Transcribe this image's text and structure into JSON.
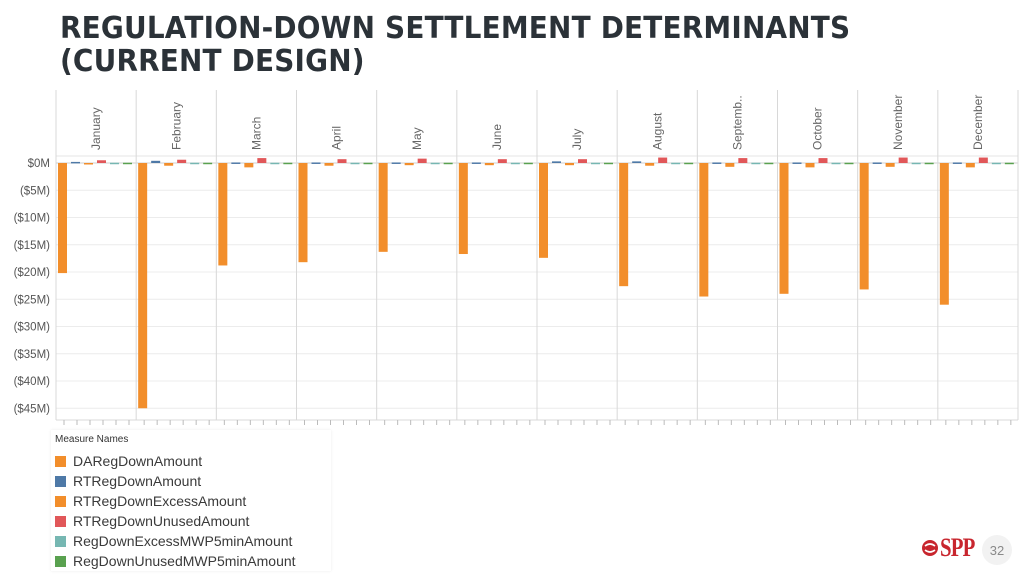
{
  "slide": {
    "title_line1": "REGULATION-DOWN SETTLEMENT DETERMINANTS",
    "title_line2": "(CURRENT DESIGN)",
    "page_number": "32",
    "logo_text": "SPP"
  },
  "legend": {
    "title": "Measure Names"
  },
  "colors": {
    "DA": "#f28e2b",
    "RT": "#4e79a7",
    "RTExcess": "#f28e2b",
    "RTUnused": "#e15759",
    "ExcessMWP": "#76b7b2",
    "UnusedMWP": "#59a14f",
    "brand": "#c8262e"
  },
  "chart_data": {
    "type": "bar",
    "categories": [
      "January",
      "February",
      "March",
      "April",
      "May",
      "June",
      "July",
      "August",
      "Septemb..",
      "October",
      "November",
      "December"
    ],
    "ylim": [
      -47,
      2
    ],
    "yticks": [
      0,
      -5,
      -10,
      -15,
      -20,
      -25,
      -30,
      -35,
      -40,
      -45
    ],
    "ytick_labels": [
      "$0M",
      "($5M)",
      "($10M)",
      "($15M)",
      "($20M)",
      "($25M)",
      "($30M)",
      "($35M)",
      "($40M)",
      "($45M)"
    ],
    "grid": true,
    "legend_position": "bottom-left",
    "series": [
      {
        "name": "DARegDownAmount",
        "color": "#f28e2b",
        "values": [
          -20.2,
          -45.0,
          -18.8,
          -18.2,
          -16.3,
          -16.7,
          -17.4,
          -22.6,
          -24.5,
          -24.0,
          -23.2,
          -26.0
        ]
      },
      {
        "name": "RTRegDownAmount",
        "color": "#4e79a7",
        "values": [
          0.2,
          0.4,
          0.1,
          0.1,
          0.1,
          0.1,
          0.3,
          0.3,
          0.1,
          0.1,
          0.1,
          0.1
        ]
      },
      {
        "name": "RTRegDownExcessAmount",
        "color": "#f28e2b",
        "values": [
          -0.2,
          -0.5,
          -0.8,
          -0.5,
          -0.4,
          -0.4,
          -0.4,
          -0.5,
          -0.7,
          -0.8,
          -0.7,
          -0.8
        ]
      },
      {
        "name": "RTRegDownUnusedAmount",
        "color": "#e15759",
        "values": [
          0.5,
          0.6,
          0.9,
          0.7,
          0.8,
          0.7,
          0.7,
          1.0,
          0.9,
          0.9,
          1.0,
          1.0
        ]
      },
      {
        "name": "RegDownExcessMWP5minAmount",
        "color": "#76b7b2",
        "values": [
          0.05,
          0.05,
          0.05,
          0.05,
          0.05,
          0.05,
          0.05,
          0.05,
          0.05,
          0.05,
          0.05,
          0.05
        ]
      },
      {
        "name": "RegDownUnusedMWP5minAmount",
        "color": "#59a14f",
        "values": [
          0.05,
          0.05,
          0.05,
          0.05,
          0.05,
          0.05,
          0.05,
          0.05,
          0.05,
          0.05,
          0.05,
          0.05
        ]
      }
    ]
  }
}
